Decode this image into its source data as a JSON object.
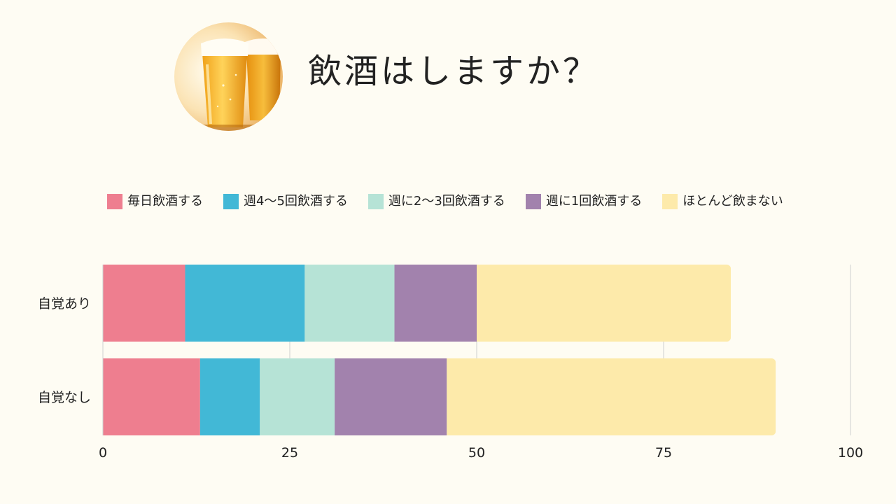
{
  "header": {
    "title": "飲酒はしますか？",
    "photo_icon": "beer-glasses-photo"
  },
  "chart_data": {
    "type": "bar",
    "orientation": "horizontal",
    "stacked": true,
    "categories": [
      "自覚あり",
      "自覚なし"
    ],
    "series": [
      {
        "name": "毎日飲酒する",
        "color": "#ee7e8f",
        "values": [
          11,
          13
        ]
      },
      {
        "name": "週4〜5回飲酒する",
        "color": "#42b8d6",
        "values": [
          16,
          8
        ]
      },
      {
        "name": "週に2〜3回飲酒する",
        "color": "#b6e3d6",
        "values": [
          12,
          10
        ]
      },
      {
        "name": "週に1回飲酒する",
        "color": "#a282ad",
        "values": [
          11,
          15
        ]
      },
      {
        "name": "ほとんど飲まない",
        "color": "#fdeaaa",
        "values": [
          34,
          44
        ]
      }
    ],
    "xlim": [
      0,
      100
    ],
    "x_ticks": [
      0,
      25,
      50,
      75,
      100
    ],
    "grid": true,
    "legend_position": "top"
  }
}
